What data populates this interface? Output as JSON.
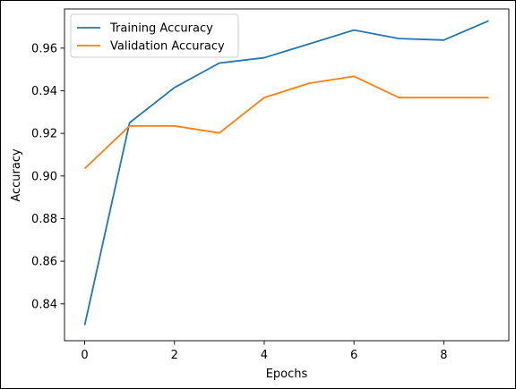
{
  "chart_data": {
    "type": "line",
    "title": "",
    "xlabel": "Epochs",
    "ylabel": "Accuracy",
    "xlim": [
      -0.45,
      9.45
    ],
    "ylim": [
      0.8227,
      0.9784
    ],
    "x_ticks": [
      0,
      2,
      4,
      6,
      8
    ],
    "y_ticks": [
      0.84,
      0.86,
      0.88,
      0.9,
      0.92,
      0.94,
      0.96
    ],
    "x_tick_labels": [
      "0",
      "2",
      "4",
      "6",
      "8"
    ],
    "y_tick_labels": [
      "0.84",
      "0.86",
      "0.88",
      "0.90",
      "0.92",
      "0.94",
      "0.96"
    ],
    "x": [
      0,
      1,
      2,
      3,
      4,
      5,
      6,
      7,
      8,
      9
    ],
    "grid": false,
    "legend_position": "upper-left",
    "series": [
      {
        "name": "Training Accuracy",
        "color": "#1f77b4",
        "values": [
          0.83,
          0.925,
          0.9415,
          0.953,
          0.9555,
          0.962,
          0.9685,
          0.9645,
          0.9638,
          0.9728
        ]
      },
      {
        "name": "Validation Accuracy",
        "color": "#ff7f0e",
        "values": [
          0.9035,
          0.9235,
          0.9235,
          0.9202,
          0.9368,
          0.9435,
          0.9468,
          0.9368,
          0.9368,
          0.9368
        ]
      }
    ]
  }
}
